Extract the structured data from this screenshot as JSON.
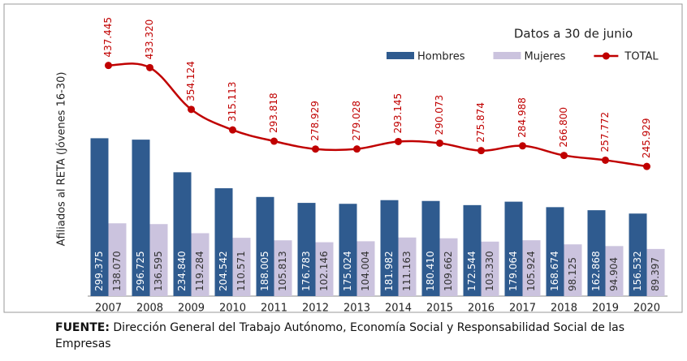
{
  "chart_data": {
    "type": "bar_line",
    "subtitle": "Datos a 30 de junio",
    "y_label": "Afiliados al RETA (Jóvenes 16-30)",
    "categories": [
      "2007",
      "2008",
      "2009",
      "2010",
      "2011",
      "2012",
      "2013",
      "2014",
      "2015",
      "2016",
      "2017",
      "2018",
      "2019",
      "2020"
    ],
    "series": [
      {
        "name": "Hombres",
        "color": "#2f5b8f",
        "kind": "bar",
        "values": [
          299375,
          296725,
          234840,
          204542,
          188005,
          176783,
          175024,
          181982,
          180410,
          172544,
          179064,
          168674,
          162868,
          156532
        ],
        "value_labels": [
          "299.375",
          "296.725",
          "234.840",
          "204.542",
          "188.005",
          "176.783",
          "175.024",
          "181.982",
          "180.410",
          "172.544",
          "179.064",
          "168.674",
          "162.868",
          "156.532"
        ]
      },
      {
        "name": "Mujeres",
        "color": "#cbc3de",
        "kind": "bar",
        "values": [
          138070,
          136595,
          119284,
          110571,
          105813,
          102146,
          104004,
          111163,
          109662,
          103330,
          105924,
          98125,
          94904,
          89397
        ],
        "value_labels": [
          "138.070",
          "136.595",
          "119.284",
          "110.571",
          "105.813",
          "102.146",
          "104.004",
          "111.163",
          "109.662",
          "103.330",
          "105.924",
          "98.125",
          "94.904",
          "89.397"
        ]
      },
      {
        "name": "TOTAL",
        "color": "#c00000",
        "kind": "line",
        "values": [
          437445,
          433320,
          354124,
          315113,
          293818,
          278929,
          279028,
          293145,
          290073,
          275874,
          284988,
          266800,
          257772,
          245929
        ],
        "value_labels": [
          "437.445",
          "433.320",
          "354.124",
          "315.113",
          "293.818",
          "278.929",
          "279.028",
          "293.145",
          "290.073",
          "275.874",
          "284.988",
          "266.800",
          "257.772",
          "245.929"
        ]
      }
    ],
    "ylim": [
      0,
      500000
    ]
  },
  "source": {
    "label": "FUENTE:",
    "text": "Dirección General del Trabajo Autónomo, Economía Social y Responsabilidad Social de las Empresas"
  }
}
